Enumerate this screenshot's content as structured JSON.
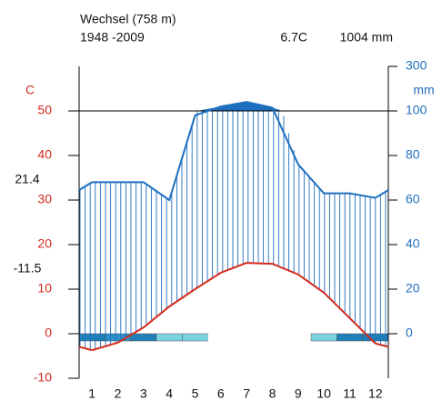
{
  "chart_data": {
    "type": "climate",
    "title": "Wechsel (758 m)",
    "subtitle": "1948 -2009",
    "mean_temperature": "6.7C",
    "annual_precipitation": "1004 mm",
    "ylabel": "C",
    "y2label": "mm",
    "annotations": [
      "21.4",
      "-11.5"
    ],
    "categories": [
      "1",
      "2",
      "3",
      "4",
      "5",
      "6",
      "7",
      "8",
      "9",
      "10",
      "11",
      "12"
    ],
    "series": [
      {
        "name": "Temperature",
        "color": "#d42a1e",
        "values": [
          -3.7,
          -2,
          1.4,
          6.1,
          10,
          13.7,
          15.9,
          15.7,
          13.3,
          9.2,
          3.5,
          -2.2
        ]
      },
      {
        "name": "Precipitation",
        "color": "#1f6fbf",
        "axis": "y2",
        "values": [
          68,
          68,
          68,
          60,
          98,
          120,
          140,
          115,
          76,
          63,
          63,
          61
        ]
      }
    ],
    "frost_colors": [
      "#1f7fb8",
      "#2a90c8",
      "#1f7fb8",
      "#7ad3e0",
      "#7ad3e0",
      null,
      null,
      null,
      null,
      "#7ad3e0",
      "#1f7fb8",
      "#1f7fb8"
    ],
    "ylim": [
      -10,
      60
    ],
    "yticks": [
      -10,
      0,
      10,
      20,
      30,
      40,
      50
    ],
    "y2lim": [
      0,
      300
    ],
    "y2ticks": [
      0,
      20,
      40,
      60,
      80,
      100,
      300
    ],
    "y2_break": 100
  }
}
